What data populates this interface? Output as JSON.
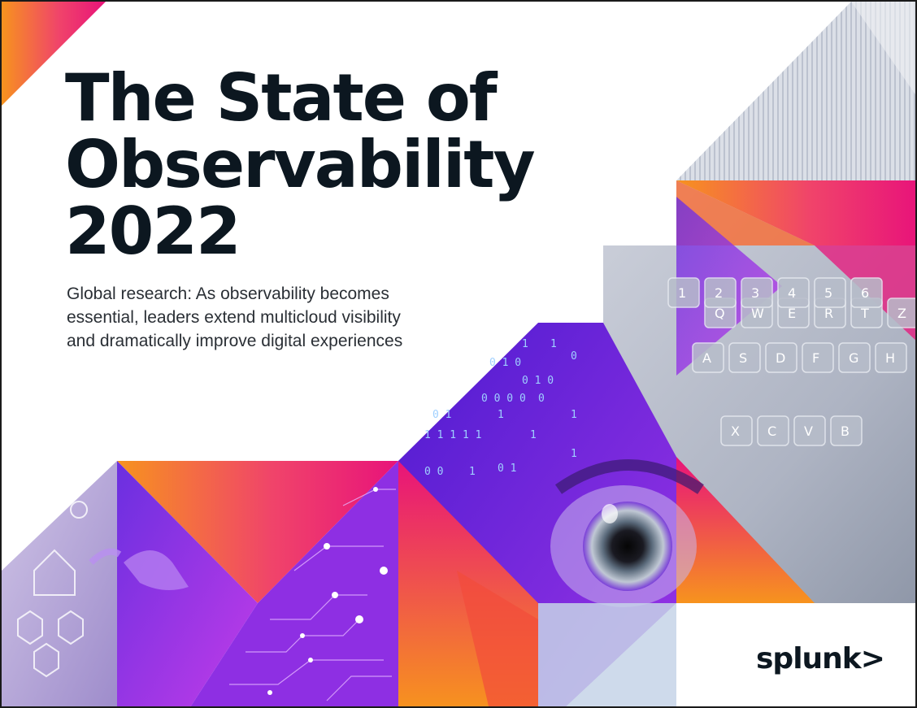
{
  "cover": {
    "title_lines": [
      "The State of",
      "Observability",
      "2022"
    ],
    "subtitle_lines": [
      "Global research: As observability becomes",
      "essential, leaders extend multicloud visibility",
      "and dramatically improve digital experiences"
    ],
    "logo_text": "splunk>"
  },
  "colors": {
    "title": "#0c1720",
    "magenta": "#e8137a",
    "orange": "#f7931e",
    "purple": "#8b2be2",
    "violet": "#5a1fd1"
  },
  "imagery": {
    "binary_digits": [
      "1",
      "1",
      "0",
      "0 1 0",
      "0 1 0",
      "0 0 0 0",
      "0",
      "1",
      "0 1",
      "1",
      "1 1 1 1 1",
      "1",
      "1",
      "0 0",
      "1",
      "0 1"
    ],
    "keyboard_keys": [
      "Q",
      "W",
      "E",
      "R",
      "T",
      "Z",
      "A",
      "S",
      "D",
      "F",
      "G",
      "H",
      "X",
      "C",
      "V",
      "B",
      "1",
      "2",
      "3",
      "4",
      "5",
      "6"
    ]
  }
}
